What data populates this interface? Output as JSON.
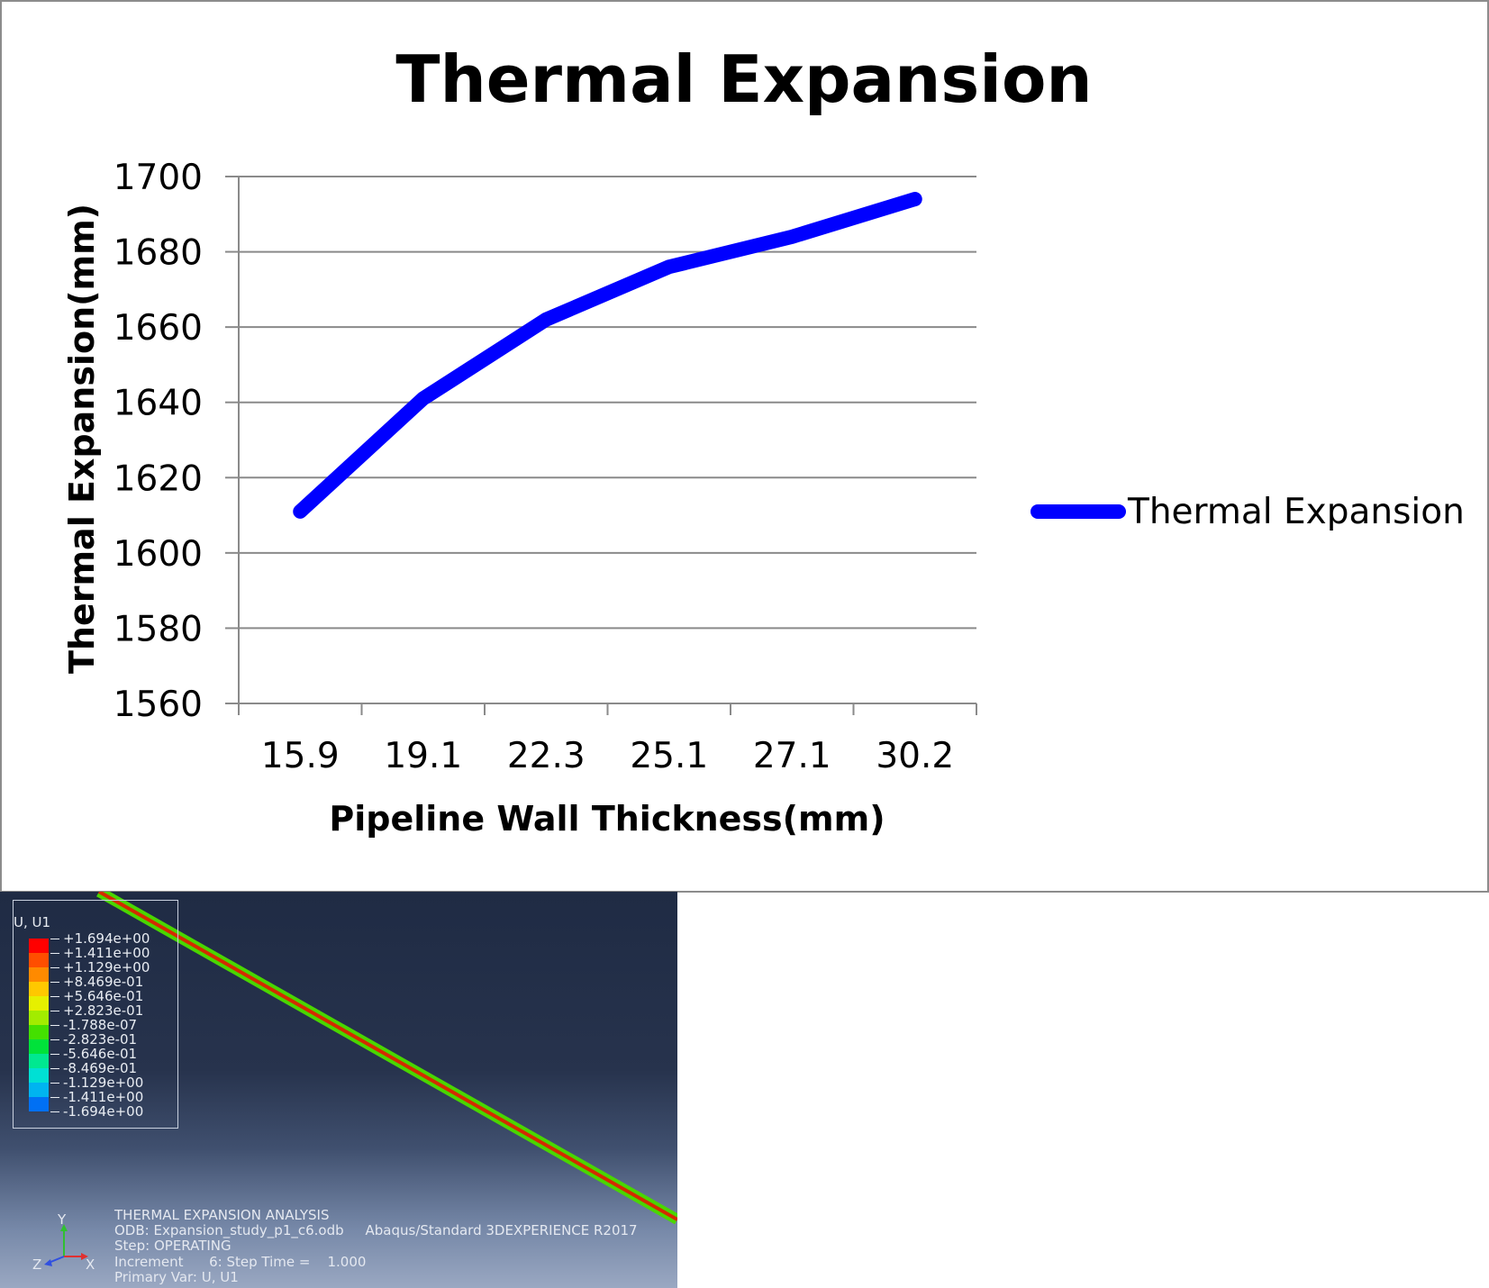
{
  "chart_data": {
    "type": "line",
    "title": "Thermal Expansion",
    "xlabel": "Pipeline Wall Thickness(mm)",
    "ylabel": "Thermal Expansion(mm)",
    "categories": [
      "15.9",
      "19.1",
      "22.3",
      "25.1",
      "27.1",
      "30.2"
    ],
    "series": [
      {
        "name": "Thermal Expansion",
        "values": [
          1611,
          1641,
          1662,
          1676,
          1684,
          1694
        ]
      }
    ],
    "ylim": [
      1560,
      1700
    ],
    "yticks": [
      1560,
      1580,
      1600,
      1620,
      1640,
      1660,
      1680,
      1700
    ],
    "grid": true,
    "legend_position": "right",
    "line_color": "#0000ff"
  },
  "fea": {
    "legend_title": "U, U1",
    "contour_levels": [
      {
        "label": "+1.694e+00",
        "color": "#ff0000"
      },
      {
        "label": "+1.411e+00",
        "color": "#ff4e00"
      },
      {
        "label": "+1.129e+00",
        "color": "#ff8a00"
      },
      {
        "label": "+8.469e-01",
        "color": "#ffc800"
      },
      {
        "label": "+5.646e-01",
        "color": "#e6f000"
      },
      {
        "label": "+2.823e-01",
        "color": "#a2ec00"
      },
      {
        "label": "-1.788e-07",
        "color": "#44e000"
      },
      {
        "label": "-2.823e-01",
        "color": "#00e23a"
      },
      {
        "label": "-5.646e-01",
        "color": "#00e890"
      },
      {
        "label": "-8.469e-01",
        "color": "#00e0d4"
      },
      {
        "label": "-1.129e+00",
        "color": "#00b4f0"
      },
      {
        "label": "-1.411e+00",
        "color": "#0070f4"
      },
      {
        "label": "-1.694e+00",
        "color": "#0022f0"
      }
    ],
    "info": {
      "line1": "THERMAL EXPANSION ANALYSIS",
      "line2": "ODB: Expansion_study_p1_c6.odb     Abaqus/Standard 3DEXPERIENCE R2017",
      "line3": "Step: OPERATING",
      "line4": "Increment      6: Step Time =    1.000",
      "line5": "Primary Var: U, U1"
    },
    "triad": {
      "y": "Y",
      "z": "Z",
      "x": "X"
    }
  }
}
